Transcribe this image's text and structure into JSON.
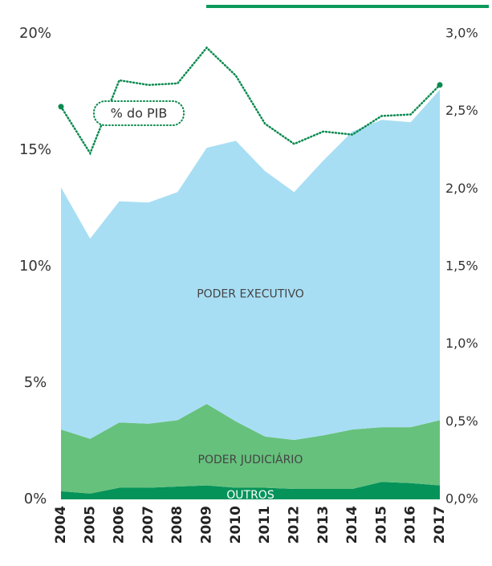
{
  "chart_data": {
    "type": "stacked-area-line",
    "categories": [
      "2004",
      "2005",
      "2006",
      "2007",
      "2008",
      "2009",
      "2010",
      "2011",
      "2012",
      "2013",
      "2014",
      "2015",
      "2016",
      "2017"
    ],
    "series": [
      {
        "name": "OUTROS",
        "color": "#05935a",
        "values": [
          0.35,
          0.25,
          0.5,
          0.5,
          0.55,
          0.6,
          0.5,
          0.5,
          0.45,
          0.45,
          0.45,
          0.75,
          0.7,
          0.6
        ]
      },
      {
        "name": "PODER JUDICIÁRIO",
        "color": "#66c17c",
        "values": [
          2.65,
          2.35,
          2.8,
          2.75,
          2.85,
          3.5,
          2.85,
          2.2,
          2.1,
          2.3,
          2.55,
          2.35,
          2.4,
          2.8
        ]
      },
      {
        "name": "PODER EXECUTIVO",
        "color": "#a8def3",
        "values": [
          10.4,
          8.6,
          9.5,
          9.5,
          9.8,
          11.0,
          12.05,
          11.4,
          10.65,
          11.8,
          12.8,
          13.2,
          13.1,
          14.2
        ]
      },
      {
        "name": "% do PIB",
        "color": "#0a8a4f",
        "axis": "y2",
        "values": [
          2.53,
          2.23,
          2.7,
          2.67,
          2.68,
          2.91,
          2.73,
          2.42,
          2.29,
          2.37,
          2.35,
          2.47,
          2.48,
          2.67
        ]
      }
    ],
    "ylim": [
      0,
      20
    ],
    "yticks": [
      {
        "value": 0,
        "label": "0%"
      },
      {
        "value": 5,
        "label": "5%"
      },
      {
        "value": 10,
        "label": "10%"
      },
      {
        "value": 15,
        "label": "15%"
      },
      {
        "value": 20,
        "label": "20%"
      }
    ],
    "y2lim": [
      0,
      3
    ],
    "y2ticks": [
      {
        "value": 0,
        "label": "0,0%"
      },
      {
        "value": 0.5,
        "label": "0,5%"
      },
      {
        "value": 1,
        "label": "1,0%"
      },
      {
        "value": 1.5,
        "label": "1,5%"
      },
      {
        "value": 2,
        "label": "2,0%"
      },
      {
        "value": 2.5,
        "label": "2,5%"
      },
      {
        "value": 3,
        "label": "3,0%"
      }
    ]
  }
}
